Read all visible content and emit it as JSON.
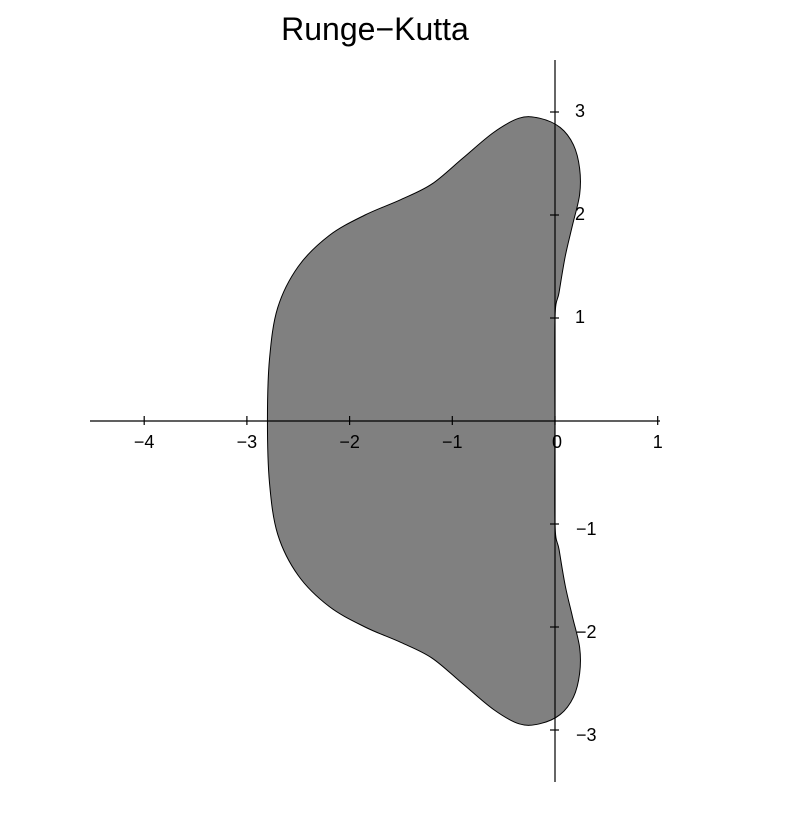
{
  "chart_data": {
    "type": "area",
    "title": "Runge−Kutta",
    "xlabel": "",
    "ylabel": "",
    "xlim": [
      -4.5,
      1.0
    ],
    "ylim": [
      -3.5,
      3.5
    ],
    "grid": false,
    "fill_color": "#808080",
    "x_ticks": [
      {
        "value": -4,
        "label": "−4"
      },
      {
        "value": -3,
        "label": "−3"
      },
      {
        "value": -2,
        "label": "−2"
      },
      {
        "value": -1,
        "label": "−1"
      },
      {
        "value": 0,
        "label": "0"
      },
      {
        "value": 1,
        "label": "1"
      }
    ],
    "y_ticks": [
      {
        "value": 3,
        "label": "3"
      },
      {
        "value": 2,
        "label": "2"
      },
      {
        "value": 1,
        "label": "1"
      },
      {
        "value": -1,
        "label": "−1"
      },
      {
        "value": -2,
        "label": "−2"
      },
      {
        "value": -3,
        "label": "−3"
      }
    ],
    "series": [
      {
        "description_units": "boundary of stability region |R(z)| = 1, upper half (x, y); mirrored about y = 0",
        "points": [
          [
            0.0,
            0.0
          ],
          [
            0.0,
            1.0
          ],
          [
            0.04,
            1.25
          ],
          [
            0.1,
            1.6
          ],
          [
            0.17,
            1.9
          ],
          [
            0.24,
            2.2
          ],
          [
            0.24,
            2.45
          ],
          [
            0.18,
            2.68
          ],
          [
            0.05,
            2.85
          ],
          [
            -0.15,
            2.94
          ],
          [
            -0.35,
            2.94
          ],
          [
            -0.6,
            2.8
          ],
          [
            -0.9,
            2.55
          ],
          [
            -1.2,
            2.3
          ],
          [
            -1.5,
            2.15
          ],
          [
            -1.85,
            2.0
          ],
          [
            -2.2,
            1.8
          ],
          [
            -2.5,
            1.5
          ],
          [
            -2.7,
            1.1
          ],
          [
            -2.78,
            0.6
          ],
          [
            -2.8,
            0.0
          ]
        ]
      }
    ]
  }
}
